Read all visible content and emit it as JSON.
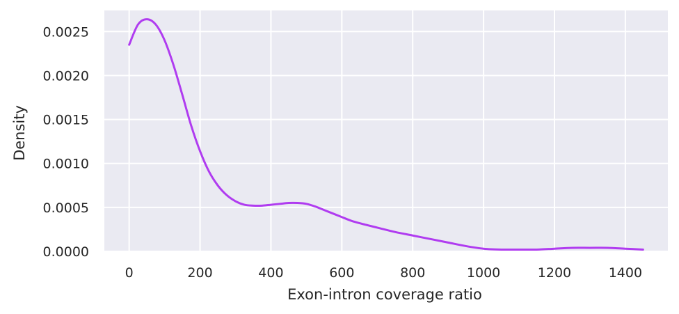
{
  "chart_data": {
    "type": "line",
    "title": "",
    "xlabel": "Exon-intron coverage ratio",
    "ylabel": "Density",
    "xlim": [
      -70,
      1520
    ],
    "ylim": [
      0,
      0.00274
    ],
    "xticks": [
      0,
      200,
      400,
      600,
      800,
      1000,
      1200,
      1400
    ],
    "xtick_labels": [
      "0",
      "200",
      "400",
      "600",
      "800",
      "1000",
      "1200",
      "1400"
    ],
    "yticks": [
      0,
      0.0005,
      0.001,
      0.0015,
      0.002,
      0.0025
    ],
    "ytick_labels": [
      "0.0000",
      "0.0005",
      "0.0010",
      "0.0015",
      "0.0020",
      "0.0025"
    ],
    "grid": true,
    "background": "#eaeaf2",
    "grid_color": "#ffffff",
    "series": [
      {
        "color": "#b03cf0",
        "x": [
          0,
          25,
          50,
          75,
          100,
          125,
          150,
          175,
          200,
          225,
          250,
          275,
          300,
          325,
          350,
          375,
          400,
          425,
          450,
          475,
          500,
          525,
          550,
          575,
          600,
          625,
          650,
          700,
          750,
          800,
          850,
          900,
          950,
          1000,
          1050,
          1100,
          1150,
          1200,
          1250,
          1300,
          1350,
          1400,
          1450
        ],
        "y": [
          0.00235,
          0.00258,
          0.00264,
          0.00258,
          0.0024,
          0.00212,
          0.00178,
          0.00143,
          0.00114,
          0.00091,
          0.00075,
          0.00064,
          0.00057,
          0.00053,
          0.00052,
          0.00052,
          0.00053,
          0.00054,
          0.00055,
          0.00055,
          0.00054,
          0.00051,
          0.00047,
          0.00043,
          0.00039,
          0.00035,
          0.00032,
          0.00027,
          0.00022,
          0.00018,
          0.00014,
          0.0001,
          6e-05,
          3e-05,
          2e-05,
          2e-05,
          2e-05,
          3e-05,
          4e-05,
          4e-05,
          4e-05,
          3e-05,
          2e-05
        ]
      }
    ]
  }
}
